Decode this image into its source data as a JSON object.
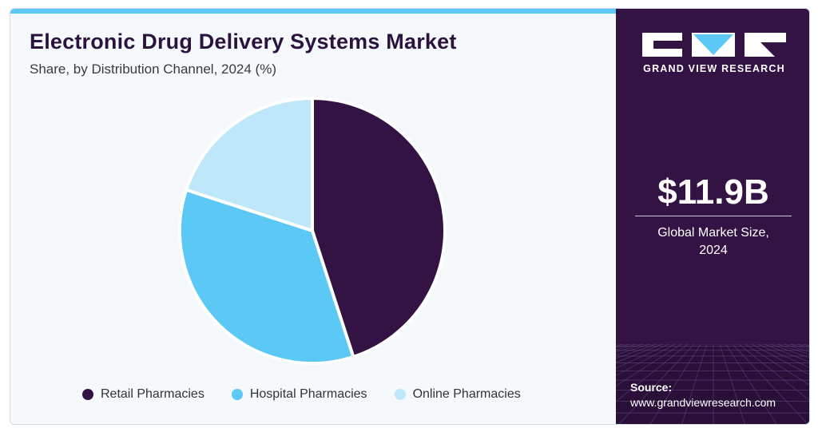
{
  "chart_data": {
    "type": "pie",
    "title": "Electronic Drug Delivery Systems Market",
    "subtitle": "Share, by Distribution Channel, 2024 (%)",
    "categories": [
      "Retail Pharmacies",
      "Hospital Pharmacies",
      "Online Pharmacies"
    ],
    "values": [
      45,
      35,
      20
    ],
    "colors": [
      "#331343",
      "#5bc8f5",
      "#bee8fa"
    ],
    "legend_position": "bottom"
  },
  "sidebar": {
    "brand_name": "GRAND VIEW RESEARCH",
    "market_value": "$11.9B",
    "caption_line1": "Global Market Size,",
    "caption_line2": "2024",
    "source_label": "Source:",
    "source_url": "www.grandviewresearch.com"
  }
}
